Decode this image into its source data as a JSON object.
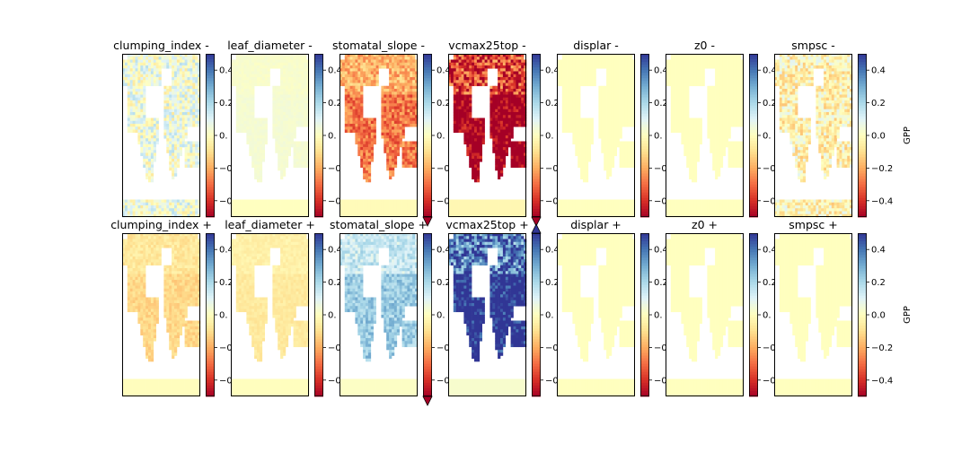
{
  "chart_data": {
    "type": "heatmap",
    "description_type": "grid of 14 map panels, each with a diverging colorbar",
    "colormap": "RdYlBu",
    "colormap_stops": [
      "#a50026",
      "#d73027",
      "#f46d43",
      "#fdae61",
      "#fee090",
      "#ffffbf",
      "#e0f3f8",
      "#abd9e9",
      "#74add1",
      "#4575b4",
      "#313695"
    ],
    "land_color": "#ffffbf",
    "ocean_color": "#ffffff",
    "clim": [
      -0.5,
      0.5
    ],
    "colorbar_ticks": [
      "0.4",
      "0.2",
      "0.0",
      "−0.2",
      "−0.4"
    ],
    "colorbar_tick_values": [
      0.4,
      0.2,
      0.0,
      -0.2,
      -0.4
    ],
    "colorbar_ticks_clipped": [
      "0.4",
      "0.2",
      "0.",
      "−0",
      "−0"
    ],
    "colorbar_label": "GPP",
    "rows": [
      {
        "sign": "-",
        "panels": [
          {
            "title": "clumping_index -",
            "extend": "neither",
            "signal": "weak-mixed",
            "mean_effect": 0.05
          },
          {
            "title": "leaf_diameter -",
            "extend": "neither",
            "signal": "weak-positive",
            "mean_effect": 0.03
          },
          {
            "title": "stomatal_slope -",
            "extend": "min",
            "signal": "negative",
            "mean_effect": -0.25
          },
          {
            "title": "vcmax25top -",
            "extend": "min",
            "signal": "strong-negative",
            "mean_effect": -0.5
          },
          {
            "title": "displar -",
            "extend": "neither",
            "signal": "none",
            "mean_effect": 0.0
          },
          {
            "title": "z0 -",
            "extend": "neither",
            "signal": "none",
            "mean_effect": 0.0
          },
          {
            "title": "smpsc -",
            "extend": "neither",
            "signal": "weak-mixed",
            "mean_effect": -0.03
          }
        ]
      },
      {
        "sign": "+",
        "panels": [
          {
            "title": "clumping_index +",
            "extend": "neither",
            "signal": "weak-negative",
            "mean_effect": -0.1
          },
          {
            "title": "leaf_diameter +",
            "extend": "neither",
            "signal": "weak-negative",
            "mean_effect": -0.06
          },
          {
            "title": "stomatal_slope +",
            "extend": "min",
            "signal": "positive",
            "mean_effect": 0.2
          },
          {
            "title": "vcmax25top +",
            "extend": "max",
            "signal": "strong-positive",
            "mean_effect": 0.5
          },
          {
            "title": "displar +",
            "extend": "neither",
            "signal": "none",
            "mean_effect": 0.0
          },
          {
            "title": "z0 +",
            "extend": "neither",
            "signal": "none",
            "mean_effect": 0.0
          },
          {
            "title": "smpsc +",
            "extend": "neither",
            "signal": "none",
            "mean_effect": 0.0
          }
        ]
      }
    ]
  }
}
